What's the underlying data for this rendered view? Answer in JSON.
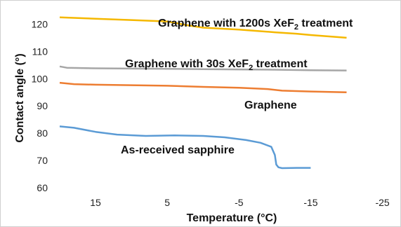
{
  "chart_data": {
    "type": "line",
    "title": "",
    "xlabel": "Temperature (°C)",
    "ylabel": "Contact angle (°)",
    "xlim": [
      20,
      -27
    ],
    "ylim": [
      60,
      125
    ],
    "x_reversed": true,
    "x_ticks": [
      15,
      5,
      -5,
      -15,
      -25
    ],
    "x_tick_labels": [
      "15",
      "5",
      "-5",
      "-15",
      "-25"
    ],
    "y_ticks": [
      60,
      70,
      80,
      90,
      100,
      110,
      120
    ],
    "y_tick_labels": [
      "60",
      "70",
      "80",
      "90",
      "100",
      "110",
      "120"
    ],
    "grid": false,
    "legend": "inline labels",
    "series": [
      {
        "name": "Graphene with 1200s XeF",
        "name_subscript": "2",
        "name_suffix": " treatment",
        "color": "#f5b800",
        "x": [
          20,
          15,
          10,
          5,
          2,
          0,
          -5,
          -10,
          -13,
          -15,
          -20
        ],
        "y": [
          122.5,
          122,
          121.5,
          121,
          119.5,
          118.7,
          118,
          117,
          116.5,
          116,
          115
        ]
      },
      {
        "name": "Graphene with 30s XeF",
        "name_subscript": "2",
        "name_suffix": " treatment",
        "color": "#a6a6a6",
        "x": [
          20,
          19,
          15,
          10,
          5,
          0,
          -5,
          -10,
          -15,
          -20
        ],
        "y": [
          104.5,
          104,
          103.8,
          103.7,
          103.6,
          103.5,
          103.4,
          103.3,
          103.1,
          103
        ]
      },
      {
        "name": "Graphene",
        "name_subscript": "",
        "name_suffix": "",
        "color": "#ed7d31",
        "x": [
          20,
          18,
          15,
          10,
          5,
          0,
          -5,
          -9,
          -11,
          -15,
          -20
        ],
        "y": [
          98.5,
          98,
          97.8,
          97.6,
          97.4,
          97,
          96.7,
          96.2,
          95.6,
          95.3,
          95
        ]
      },
      {
        "name": "As-received sapphire",
        "name_subscript": "",
        "name_suffix": "",
        "color": "#5b9bd5",
        "x": [
          20,
          18,
          15,
          12,
          8,
          4,
          0,
          -3,
          -6,
          -8,
          -9.5,
          -10,
          -10.2,
          -10.5,
          -11,
          -13,
          -15
        ],
        "y": [
          82.5,
          82,
          80.5,
          79.5,
          79,
          79.2,
          79,
          78.5,
          77.5,
          76.5,
          75,
          72,
          68.5,
          67.5,
          67.2,
          67.3,
          67.3
        ]
      }
    ]
  }
}
